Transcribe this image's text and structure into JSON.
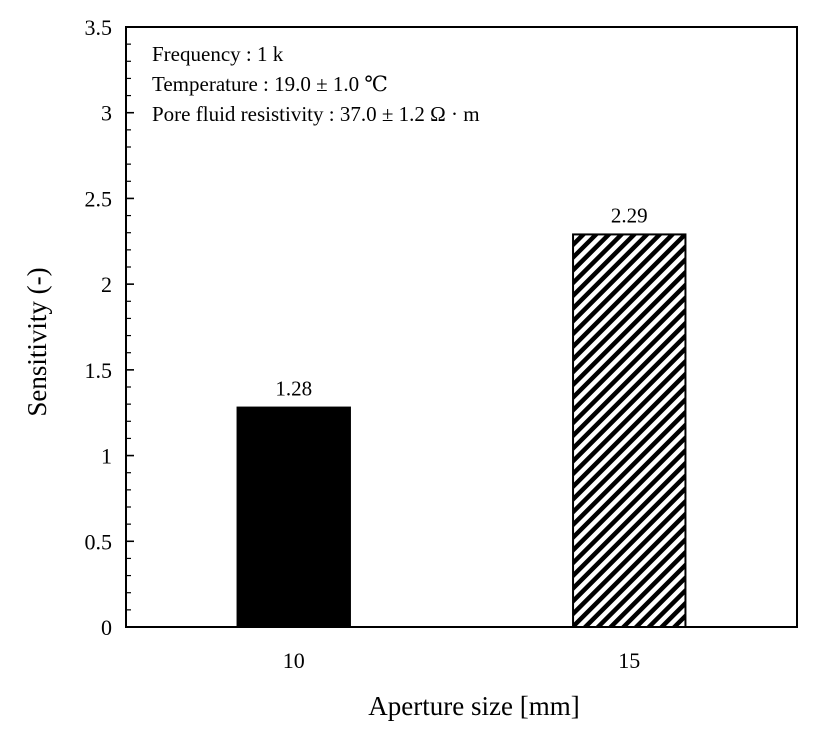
{
  "chart_data": {
    "type": "bar",
    "xlabel": "Aperture size [mm]",
    "ylabel": "Sensitivity (-)",
    "categories": [
      "10",
      "15"
    ],
    "values": [
      1.28,
      2.29
    ],
    "value_labels": [
      "1.28",
      "2.29"
    ],
    "bar_styles": [
      "solid",
      "diagonal-hatch"
    ],
    "bar_color": "#000000",
    "ylim": [
      0,
      3.5
    ],
    "y_major_step": 0.5,
    "y_minor_step": 0.1,
    "yticks": [
      "0",
      "0.5",
      "1",
      "1.5",
      "2",
      "2.5",
      "3",
      "3.5"
    ],
    "grid": false,
    "legend": "none",
    "annotations": [
      "Frequency : 1 k",
      "Temperature : 19.0 ± 1.0 ℃",
      "Pore fluid resistivity : 37.0 ± 1.2 Ω · m"
    ]
  }
}
